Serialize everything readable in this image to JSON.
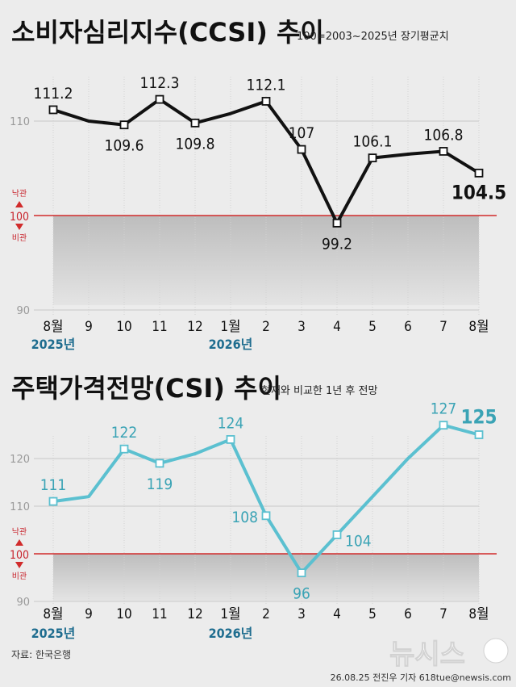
{
  "chart_data": [
    {
      "type": "line",
      "title": "소비자심리지수(CCSI) 추이",
      "subtitle": "100=2003~2025년 장기평균치",
      "categories": [
        "8월",
        "9",
        "10",
        "11",
        "12",
        "1월",
        "2",
        "3",
        "4",
        "5",
        "6",
        "7",
        "8월"
      ],
      "year_labels": [
        {
          "index": 0,
          "text": "2025년"
        },
        {
          "index": 5,
          "text": "2026년"
        }
      ],
      "values": [
        111.2,
        110.0,
        109.6,
        112.3,
        109.8,
        110.8,
        112.1,
        107,
        99.2,
        106.1,
        106.5,
        106.8,
        104.5
      ],
      "data_labels": [
        {
          "index": 0,
          "text": "111.2",
          "pos": "above"
        },
        {
          "index": 2,
          "text": "109.6",
          "pos": "below"
        },
        {
          "index": 3,
          "text": "112.3",
          "pos": "above"
        },
        {
          "index": 4,
          "text": "109.8",
          "pos": "below"
        },
        {
          "index": 6,
          "text": "112.1",
          "pos": "above"
        },
        {
          "index": 7,
          "text": "107",
          "pos": "above"
        },
        {
          "index": 8,
          "text": "99.2",
          "pos": "below"
        },
        {
          "index": 9,
          "text": "106.1",
          "pos": "above"
        },
        {
          "index": 11,
          "text": "106.8",
          "pos": "above"
        },
        {
          "index": 12,
          "text": "104.5",
          "pos": "below",
          "emphasis": true
        }
      ],
      "markers": [
        0,
        2,
        3,
        4,
        6,
        7,
        8,
        9,
        11,
        12
      ],
      "yticks": [
        90,
        110
      ],
      "ylim": [
        90,
        116
      ],
      "reference": {
        "value": 100,
        "label": "100",
        "above": "낙관",
        "below": "비관"
      },
      "line_color": "#111111",
      "label_color": "#111111",
      "reference_color": "#d12b2b"
    },
    {
      "type": "line",
      "title": "주택가격전망(CSI) 추이",
      "subtitle": "현재와 비교한 1년 후 전망",
      "categories": [
        "8월",
        "9",
        "10",
        "11",
        "12",
        "1월",
        "2",
        "3",
        "4",
        "5",
        "6",
        "7",
        "8월"
      ],
      "year_labels": [
        {
          "index": 0,
          "text": "2025년"
        },
        {
          "index": 5,
          "text": "2026년"
        }
      ],
      "values": [
        111,
        112,
        122,
        119,
        121,
        124,
        108,
        96,
        104,
        112,
        120,
        127,
        125
      ],
      "data_labels": [
        {
          "index": 0,
          "text": "111",
          "pos": "above"
        },
        {
          "index": 2,
          "text": "122",
          "pos": "above"
        },
        {
          "index": 3,
          "text": "119",
          "pos": "below"
        },
        {
          "index": 5,
          "text": "124",
          "pos": "above"
        },
        {
          "index": 6,
          "text": "108",
          "pos": "left"
        },
        {
          "index": 7,
          "text": "96",
          "pos": "below"
        },
        {
          "index": 8,
          "text": "104",
          "pos": "right"
        },
        {
          "index": 11,
          "text": "127",
          "pos": "above"
        },
        {
          "index": 12,
          "text": "125",
          "pos": "above",
          "emphasis": true
        }
      ],
      "markers": [
        0,
        2,
        3,
        5,
        6,
        7,
        8,
        11,
        12
      ],
      "yticks": [
        90,
        110,
        120
      ],
      "ylim": [
        90,
        130
      ],
      "reference": {
        "value": 100,
        "label": "100",
        "above": "낙관",
        "below": "비관"
      },
      "line_color": "#5bc0d0",
      "label_color": "#3aa3b5",
      "reference_color": "#d12b2b"
    }
  ],
  "footer": {
    "source": "자료: 한국은행",
    "credit": "26.08.25 전진우 기자 618tue@newsis.com",
    "logo": "뉴시스"
  }
}
